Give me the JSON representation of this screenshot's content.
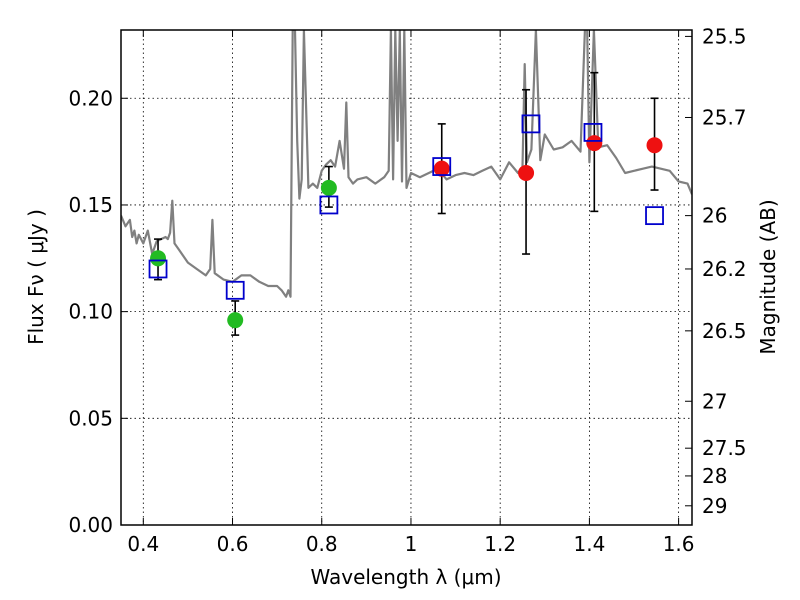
{
  "chart_data": {
    "type": "scatter",
    "xlabel": "Wavelength  λ (μm)",
    "ylabel": "Flux  Fν  ( μJy )",
    "y2label": "Magnitude (AB)",
    "xlim": [
      0.35,
      1.63
    ],
    "ylim": [
      0.0,
      0.232
    ],
    "x_ticks": [
      0.4,
      0.6,
      0.8,
      1.0,
      1.2,
      1.4,
      1.6
    ],
    "x_tick_labels": [
      "0.4",
      "0.6",
      "0.8",
      "1",
      "1.2",
      "1.4",
      "1.6"
    ],
    "y_ticks": [
      0.0,
      0.05,
      0.1,
      0.15,
      0.2
    ],
    "y_tick_labels": [
      "0.00",
      "0.05",
      "0.10",
      "0.15",
      "0.20"
    ],
    "y2_ticks": [
      {
        "label": "25.5",
        "flux": 0.229
      },
      {
        "label": "25.7",
        "flux": 0.191
      },
      {
        "label": "26",
        "flux": 0.145
      },
      {
        "label": "26.2",
        "flux": 0.12
      },
      {
        "label": "26.5",
        "flux": 0.091
      },
      {
        "label": "27",
        "flux": 0.058
      },
      {
        "label": "27.5",
        "flux": 0.036
      },
      {
        "label": "28",
        "flux": 0.023
      },
      {
        "label": "29",
        "flux": 0.009
      }
    ],
    "grid": true,
    "series": [
      {
        "kind": "line",
        "color": "#808080",
        "x": [
          0.35,
          0.36,
          0.37,
          0.375,
          0.38,
          0.385,
          0.39,
          0.4,
          0.41,
          0.42,
          0.43,
          0.44,
          0.45,
          0.455,
          0.46,
          0.465,
          0.47,
          0.48,
          0.5,
          0.52,
          0.54,
          0.55,
          0.555,
          0.56,
          0.58,
          0.6,
          0.62,
          0.64,
          0.66,
          0.68,
          0.7,
          0.71,
          0.72,
          0.725,
          0.73,
          0.735,
          0.74,
          0.745,
          0.75,
          0.755,
          0.76,
          0.77,
          0.78,
          0.79,
          0.8,
          0.81,
          0.82,
          0.83,
          0.84,
          0.85,
          0.855,
          0.86,
          0.87,
          0.88,
          0.9,
          0.92,
          0.94,
          0.95,
          0.955,
          0.96,
          0.965,
          0.97,
          0.975,
          0.98,
          0.985,
          0.99,
          1.0,
          1.02,
          1.04,
          1.06,
          1.08,
          1.1,
          1.12,
          1.14,
          1.16,
          1.18,
          1.2,
          1.22,
          1.24,
          1.25,
          1.255,
          1.26,
          1.27,
          1.28,
          1.29,
          1.3,
          1.32,
          1.34,
          1.36,
          1.38,
          1.39,
          1.395,
          1.4,
          1.41,
          1.42,
          1.44,
          1.46,
          1.48,
          1.5,
          1.52,
          1.54,
          1.56,
          1.58,
          1.6,
          1.62,
          1.63
        ],
        "y": [
          0.145,
          0.14,
          0.143,
          0.135,
          0.138,
          0.132,
          0.136,
          0.132,
          0.138,
          0.127,
          0.133,
          0.134,
          0.135,
          0.134,
          0.137,
          0.152,
          0.132,
          0.129,
          0.123,
          0.12,
          0.117,
          0.12,
          0.143,
          0.118,
          0.115,
          0.114,
          0.117,
          0.117,
          0.114,
          0.112,
          0.112,
          0.11,
          0.107,
          0.11,
          0.107,
          0.232,
          0.232,
          0.18,
          0.153,
          0.162,
          0.232,
          0.158,
          0.16,
          0.158,
          0.166,
          0.169,
          0.171,
          0.168,
          0.18,
          0.167,
          0.198,
          0.163,
          0.16,
          0.162,
          0.163,
          0.16,
          0.163,
          0.166,
          0.232,
          0.162,
          0.232,
          0.18,
          0.232,
          0.161,
          0.232,
          0.158,
          0.165,
          0.163,
          0.165,
          0.167,
          0.162,
          0.164,
          0.165,
          0.164,
          0.166,
          0.168,
          0.162,
          0.17,
          0.165,
          0.168,
          0.216,
          0.17,
          0.176,
          0.232,
          0.171,
          0.183,
          0.176,
          0.177,
          0.18,
          0.175,
          0.232,
          0.232,
          0.17,
          0.232,
          0.177,
          0.178,
          0.172,
          0.165,
          0.166,
          0.167,
          0.168,
          0.167,
          0.166,
          0.161,
          0.16,
          0.155
        ]
      },
      {
        "kind": "points",
        "marker": "circle",
        "color": "#22bb22",
        "x": [
          0.433,
          0.606,
          0.816
        ],
        "y": [
          0.125,
          0.096,
          0.158
        ],
        "err_low": [
          0.115,
          0.089,
          0.149
        ],
        "err_high": [
          0.134,
          0.105,
          0.168
        ]
      },
      {
        "kind": "points",
        "marker": "circle",
        "color": "#ee1111",
        "x": [
          1.069,
          1.258,
          1.411,
          1.546
        ],
        "y": [
          0.167,
          0.165,
          0.179,
          0.178
        ],
        "err_low": [
          0.146,
          0.127,
          0.147,
          0.157
        ],
        "err_high": [
          0.188,
          0.204,
          0.212,
          0.2
        ]
      },
      {
        "kind": "points",
        "marker": "open-square",
        "color": "#0000cc",
        "x": [
          0.433,
          0.606,
          0.816,
          1.069,
          1.269,
          1.408,
          1.546
        ],
        "y": [
          0.12,
          0.11,
          0.15,
          0.168,
          0.188,
          0.184,
          0.145
        ]
      }
    ]
  }
}
